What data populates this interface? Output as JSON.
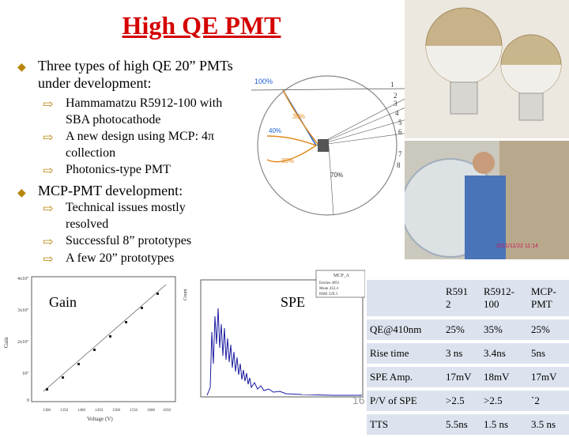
{
  "title": "High QE PMT",
  "bullets": [
    {
      "text": "Three types of high QE 20” PMTs under development:",
      "sub": [
        "Hammamatzu R5912-100 with SBA photocathode",
        "A new design using MCP: 4π collection",
        "Photonics-type PMT"
      ]
    },
    {
      "text": "MCP-PMT development:",
      "sub": [
        "Technical issues mostly resolved",
        "Successful 8” prototypes",
        "A few 20” prototypes"
      ]
    }
  ],
  "diagram": {
    "labels_pct": [
      "100%",
      "30%",
      "40%",
      "30%",
      "70%"
    ],
    "numbers": [
      "1",
      "2",
      "3",
      "4",
      "5",
      "6",
      "7",
      "8"
    ]
  },
  "gain_plot": {
    "label": "Gain",
    "ylabel": "Gain",
    "xlabel": "Voltage (V)",
    "yticks": [
      "4x10⁷",
      "3x10⁷",
      "2x10⁷",
      "10⁷",
      "0"
    ],
    "xticks": [
      "1300",
      "1350",
      "1400",
      "1450",
      "1500",
      "1550",
      "1600",
      "1650"
    ]
  },
  "spe_plot": {
    "label": "SPE",
    "ylabel": "Count",
    "stats_title": "MCP_A",
    "stats": [
      "Entries 4091",
      "Mean 432.4",
      "RMS 229.3"
    ]
  },
  "slide_number": "16",
  "photo_caption": "2011/11/22 11:14",
  "table": {
    "header": [
      "",
      "R591\n2",
      "R5912-\n100",
      "MCP-\nPMT"
    ],
    "rows": [
      [
        "QE@410nm",
        "25%",
        "35%",
        "25%"
      ],
      [
        "Rise time",
        "3 ns",
        "3.4ns",
        "5ns"
      ],
      [
        "SPE Amp.",
        "17mV",
        "18mV",
        "17mV"
      ],
      [
        "P/V of SPE",
        ">2.5",
        ">2.5",
        "`2"
      ],
      [
        "TTS",
        "5.5ns",
        "1.5 ns",
        "3.5 ns"
      ]
    ]
  },
  "colors": {
    "title": "#d40000",
    "bullet": "#b8860b",
    "table_cell": "#dde3ee"
  }
}
